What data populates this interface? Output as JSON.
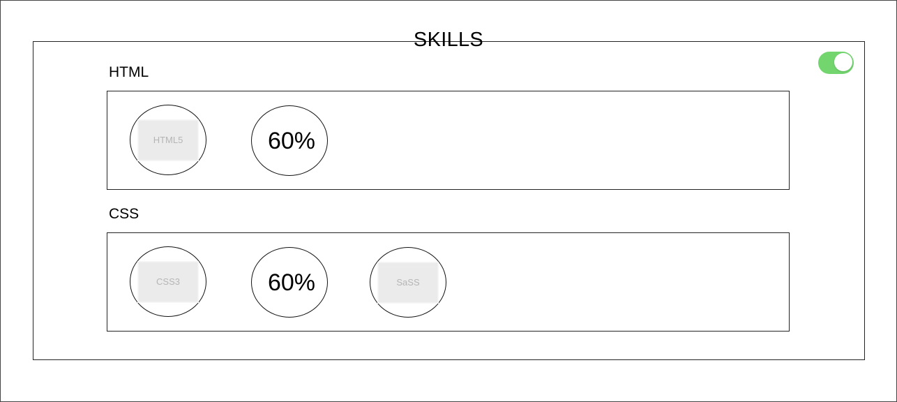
{
  "section": {
    "title": "SKILLS"
  },
  "toggle": {
    "state": "on",
    "color": "#72d56e"
  },
  "groups": [
    {
      "label": "HTML",
      "items": [
        {
          "kind": "image",
          "text": "HTML5"
        },
        {
          "kind": "percent",
          "text": "60%"
        }
      ]
    },
    {
      "label": "CSS",
      "items": [
        {
          "kind": "image",
          "text": "CSS3"
        },
        {
          "kind": "percent",
          "text": "60%"
        },
        {
          "kind": "image",
          "text": "SaSS"
        }
      ]
    }
  ]
}
